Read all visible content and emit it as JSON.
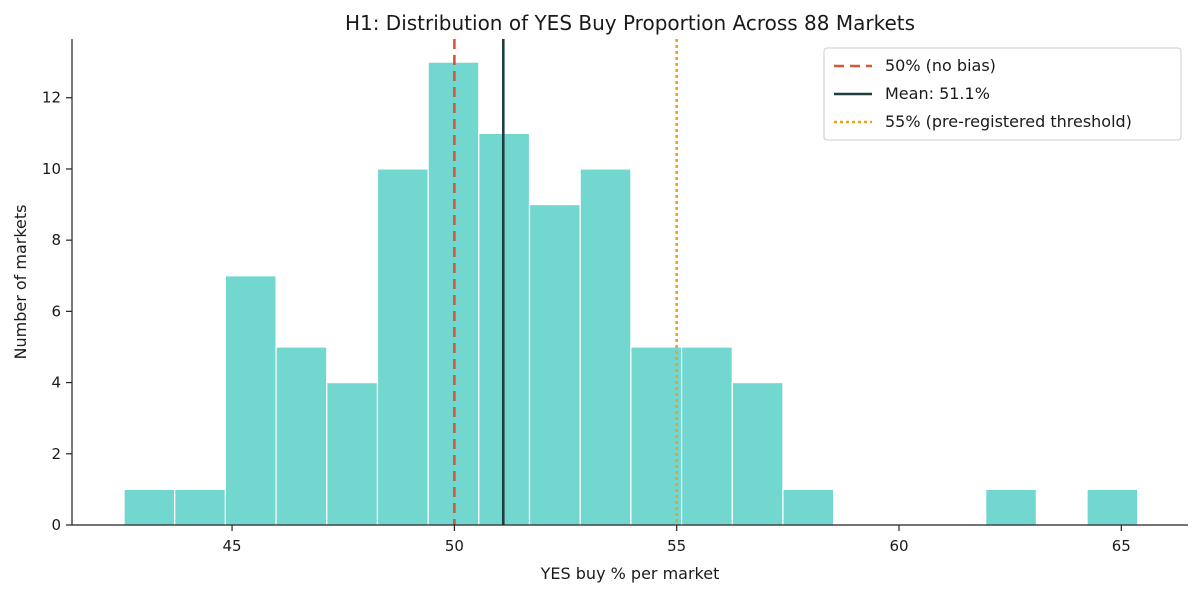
{
  "chart_data": {
    "type": "bar",
    "title": "H1: Distribution of YES Buy Proportion Across 88 Markets",
    "xlabel": "YES buy % per market",
    "ylabel": "Number of markets",
    "xlim": [
      41.4,
      66.5
    ],
    "ylim": [
      0,
      13.65
    ],
    "xticks": [
      "45",
      "50",
      "55",
      "60",
      "65"
    ],
    "yticks": [
      "0",
      "2",
      "4",
      "6",
      "8",
      "10",
      "12"
    ],
    "bin_edges": [
      42.57,
      43.71,
      44.85,
      45.99,
      47.13,
      48.27,
      49.41,
      50.55,
      51.69,
      52.83,
      53.97,
      55.11,
      56.25,
      57.39,
      58.53,
      59.67,
      60.81,
      61.95,
      63.09,
      64.23,
      65.37
    ],
    "counts": [
      1,
      1,
      7,
      5,
      4,
      10,
      13,
      11,
      9,
      10,
      5,
      5,
      4,
      1,
      0,
      0,
      0,
      1,
      0,
      1
    ],
    "reference_lines": [
      {
        "label": "50% (no bias)",
        "x": 50,
        "style": "dashed",
        "color": "#d9553a"
      },
      {
        "label": "Mean: 51.1%",
        "x": 51.1,
        "style": "solid",
        "color": "#1e3d3d"
      },
      {
        "label": "55% (pre-registered threshold)",
        "x": 55,
        "style": "dotted",
        "color": "#f0a020"
      }
    ],
    "bar_color": "#72d7cf",
    "legend_position": "top-right",
    "grid": false
  }
}
